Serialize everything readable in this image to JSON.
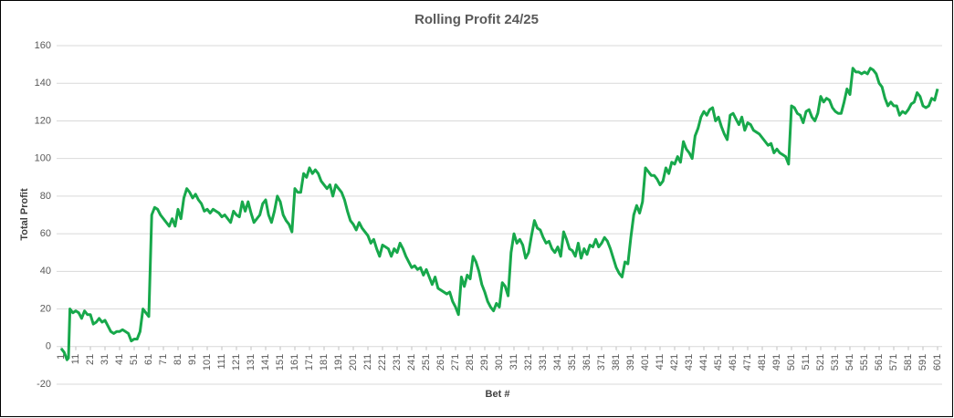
{
  "chart_data": {
    "type": "line",
    "title": "Rolling Profit 24/25",
    "x_label": "Bet #",
    "y_label": "Total Profit",
    "x": [
      1,
      3,
      5,
      6,
      7,
      9,
      11,
      13,
      15,
      17,
      19,
      21,
      23,
      25,
      27,
      29,
      31,
      33,
      35,
      37,
      39,
      41,
      43,
      45,
      47,
      49,
      51,
      53,
      55,
      57,
      59,
      61,
      63,
      65,
      67,
      69,
      71,
      73,
      75,
      77,
      79,
      81,
      83,
      85,
      87,
      89,
      91,
      93,
      95,
      97,
      99,
      101,
      103,
      105,
      107,
      109,
      111,
      113,
      115,
      117,
      119,
      121,
      123,
      125,
      127,
      129,
      131,
      133,
      135,
      137,
      139,
      141,
      143,
      145,
      147,
      149,
      151,
      153,
      155,
      157,
      159,
      161,
      163,
      165,
      167,
      169,
      171,
      173,
      175,
      177,
      179,
      181,
      183,
      185,
      187,
      189,
      191,
      193,
      195,
      197,
      199,
      201,
      203,
      205,
      207,
      209,
      211,
      213,
      215,
      217,
      219,
      221,
      223,
      225,
      227,
      229,
      231,
      233,
      235,
      237,
      239,
      241,
      243,
      245,
      247,
      249,
      251,
      253,
      255,
      257,
      259,
      265,
      267,
      269,
      271,
      273,
      275,
      277,
      279,
      281,
      283,
      285,
      287,
      289,
      291,
      293,
      295,
      297,
      299,
      301,
      303,
      305,
      307,
      309,
      311,
      313,
      315,
      317,
      319,
      321,
      323,
      325,
      327,
      329,
      331,
      333,
      335,
      337,
      339,
      341,
      343,
      345,
      347,
      349,
      351,
      353,
      355,
      357,
      359,
      361,
      363,
      365,
      367,
      369,
      371,
      373,
      375,
      377,
      379,
      381,
      383,
      385,
      387,
      389,
      391,
      393,
      395,
      397,
      399,
      401,
      403,
      405,
      407,
      409,
      411,
      413,
      415,
      417,
      419,
      421,
      423,
      425,
      427,
      429,
      431,
      433,
      435,
      437,
      439,
      441,
      443,
      445,
      447,
      449,
      451,
      453,
      455,
      457,
      459,
      461,
      463,
      465,
      467,
      469,
      471,
      473,
      475,
      477,
      479,
      481,
      485,
      487,
      489,
      491,
      493,
      495,
      497,
      499,
      501,
      503,
      505,
      507,
      509,
      511,
      513,
      515,
      517,
      519,
      521,
      523,
      525,
      527,
      529,
      531,
      533,
      535,
      537,
      539,
      541,
      543,
      545,
      547,
      549,
      551,
      553,
      555,
      557,
      559,
      561,
      563,
      565,
      567,
      569,
      571,
      573,
      575,
      577,
      579,
      581,
      583,
      585,
      587,
      589,
      591,
      593,
      595,
      597,
      599,
      601
    ],
    "series": [
      {
        "name": "Total Profit",
        "color": "#17a84b",
        "values": [
          -1,
          -3,
          -7,
          -6,
          20,
          18,
          19,
          18,
          15,
          19,
          17,
          17,
          12,
          13,
          15,
          13,
          14,
          11,
          8,
          7,
          8,
          8,
          9,
          8,
          7,
          3,
          4,
          4,
          8,
          20,
          18,
          16,
          70,
          74,
          73,
          70,
          68,
          66,
          64,
          68,
          64,
          73,
          68,
          79,
          84,
          82,
          79,
          81,
          78,
          76,
          72,
          73,
          71,
          73,
          72,
          71,
          69,
          70,
          68,
          66,
          72,
          70,
          69,
          77,
          72,
          77,
          71,
          66,
          68,
          70,
          76,
          78,
          70,
          66,
          72,
          80,
          77,
          70,
          67,
          65,
          61,
          84,
          82,
          82,
          92,
          90,
          95,
          92,
          94,
          92,
          88,
          86,
          84,
          86,
          80,
          86,
          84,
          82,
          78,
          72,
          67,
          65,
          62,
          66,
          63,
          61,
          59,
          55,
          57,
          52,
          48,
          54,
          53,
          52,
          48,
          52,
          50,
          55,
          52,
          48,
          45,
          42,
          43,
          41,
          42,
          38,
          41,
          37,
          33,
          37,
          31,
          28,
          29,
          24,
          21,
          17,
          37,
          32,
          38,
          36,
          48,
          45,
          40,
          33,
          29,
          24,
          21,
          19,
          23,
          21,
          34,
          32,
          27,
          50,
          60,
          55,
          57,
          54,
          47,
          50,
          59,
          67,
          63,
          62,
          58,
          55,
          56,
          52,
          50,
          53,
          48,
          61,
          57,
          52,
          51,
          48,
          55,
          47,
          52,
          49,
          54,
          53,
          57,
          53,
          55,
          58,
          56,
          52,
          47,
          42,
          39,
          37,
          45,
          44,
          58,
          70,
          75,
          71,
          77,
          95,
          93,
          91,
          91,
          89,
          86,
          88,
          95,
          92,
          98,
          97,
          101,
          98,
          109,
          105,
          103,
          100,
          112,
          116,
          122,
          125,
          123,
          126,
          127,
          120,
          122,
          117,
          113,
          110,
          123,
          124,
          121,
          118,
          122,
          115,
          119,
          118,
          115,
          114,
          113,
          111,
          107,
          108,
          103,
          105,
          103,
          102,
          101,
          97,
          128,
          127,
          124,
          123,
          119,
          125,
          126,
          122,
          120,
          124,
          133,
          130,
          132,
          131,
          127,
          125,
          124,
          124,
          130,
          137,
          134,
          148,
          146,
          146,
          145,
          146,
          145,
          148,
          147,
          145,
          140,
          138,
          132,
          128,
          130,
          128,
          128,
          123,
          125,
          124,
          126,
          129,
          130,
          135,
          133,
          128,
          127,
          128,
          132,
          131,
          137
        ]
      }
    ],
    "xlim": [
      1,
      601
    ],
    "xticks": [
      1,
      11,
      21,
      31,
      41,
      51,
      61,
      71,
      81,
      91,
      101,
      111,
      121,
      131,
      141,
      151,
      161,
      171,
      181,
      191,
      201,
      211,
      221,
      231,
      241,
      251,
      261,
      271,
      281,
      291,
      301,
      311,
      321,
      331,
      341,
      351,
      361,
      371,
      381,
      391,
      401,
      411,
      421,
      431,
      441,
      451,
      461,
      471,
      481,
      491,
      501,
      511,
      521,
      531,
      541,
      551,
      561,
      571,
      581,
      591,
      601
    ],
    "ylim": [
      -20,
      160
    ],
    "yticks": [
      -20,
      0,
      20,
      40,
      60,
      80,
      100,
      120,
      140,
      160
    ],
    "grid": true
  }
}
